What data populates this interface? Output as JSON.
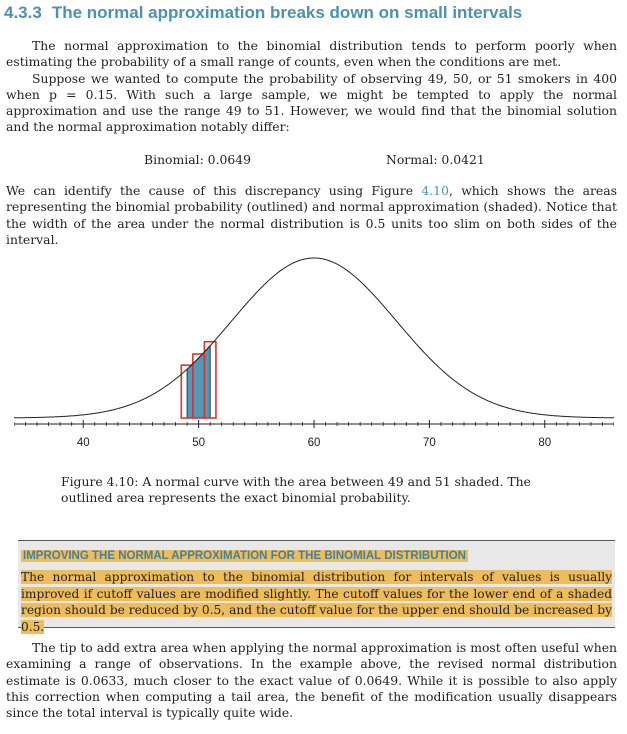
{
  "section": {
    "number": "4.3.3",
    "title": "The normal approximation breaks down on small intervals"
  },
  "intro": {
    "p1": "The normal approximation to the binomial distribution tends to perform poorly when estimating the probability of a small range of counts, even when the conditions are met.",
    "p2": "Suppose we wanted to compute the probability of observing 49, 50, or 51 smokers in 400 when p = 0.15. With such a large sample, we might be tempted to apply the normal approximation and use the range 49 to 51. However, we would find that the binomial solution and the normal approximation notably differ:"
  },
  "results": {
    "binomial": "Binomial: 0.0649",
    "normal": "Normal: 0.0421"
  },
  "discrepancy": {
    "before_ref": "We can identify the cause of this discrepancy using Figure ",
    "figure_ref": "4.10",
    "after_ref": ", which shows the areas representing the binomial probability (outlined) and normal approximation (shaded). Notice that the width of the area under the normal distribution is 0.5 units too slim on both sides of the interval."
  },
  "figure": {
    "caption": "Figure 4.10: A normal curve with the area between 49 and 51 shaded. The outlined area represents the exact binomial probability.",
    "tick_labels": [
      "40",
      "50",
      "60",
      "70",
      "80"
    ],
    "colors": {
      "shade": "#4f9ab8",
      "outline": "#e0312f",
      "curve": "#222222"
    }
  },
  "chart_data": {
    "type": "area",
    "distribution": "normal",
    "mean": 60,
    "sd": 7.14,
    "xlim": [
      34,
      86
    ],
    "xticks": [
      40,
      50,
      60,
      70,
      80
    ],
    "shaded_interval": [
      49,
      51
    ],
    "binomial_bars": [
      {
        "x": 49,
        "range": [
          48.5,
          49.5
        ]
      },
      {
        "x": 50,
        "range": [
          49.5,
          50.5
        ]
      },
      {
        "x": 51,
        "range": [
          50.5,
          51.5
        ]
      }
    ]
  },
  "tip": {
    "title": "IMPROVING THE NORMAL APPROXIMATION FOR THE BINOMIAL DISTRIBUTION",
    "body": "The normal approximation to the binomial distribution for intervals of values is usually improved if cutoff values are modified slightly. The cutoff values for the lower end of a shaded region should be reduced by 0.5, and the cutoff value for the upper end should be increased by 0.5."
  },
  "closing": {
    "text": "The tip to add extra area when applying the normal approximation is most often useful when examining a range of observations. In the example above, the revised normal distribution estimate is 0.0633, much closer to the exact value of 0.0649. While it is possible to also apply this correction when computing a tail area, the benefit of the modification usually disappears since the total interval is typically quite wide."
  }
}
